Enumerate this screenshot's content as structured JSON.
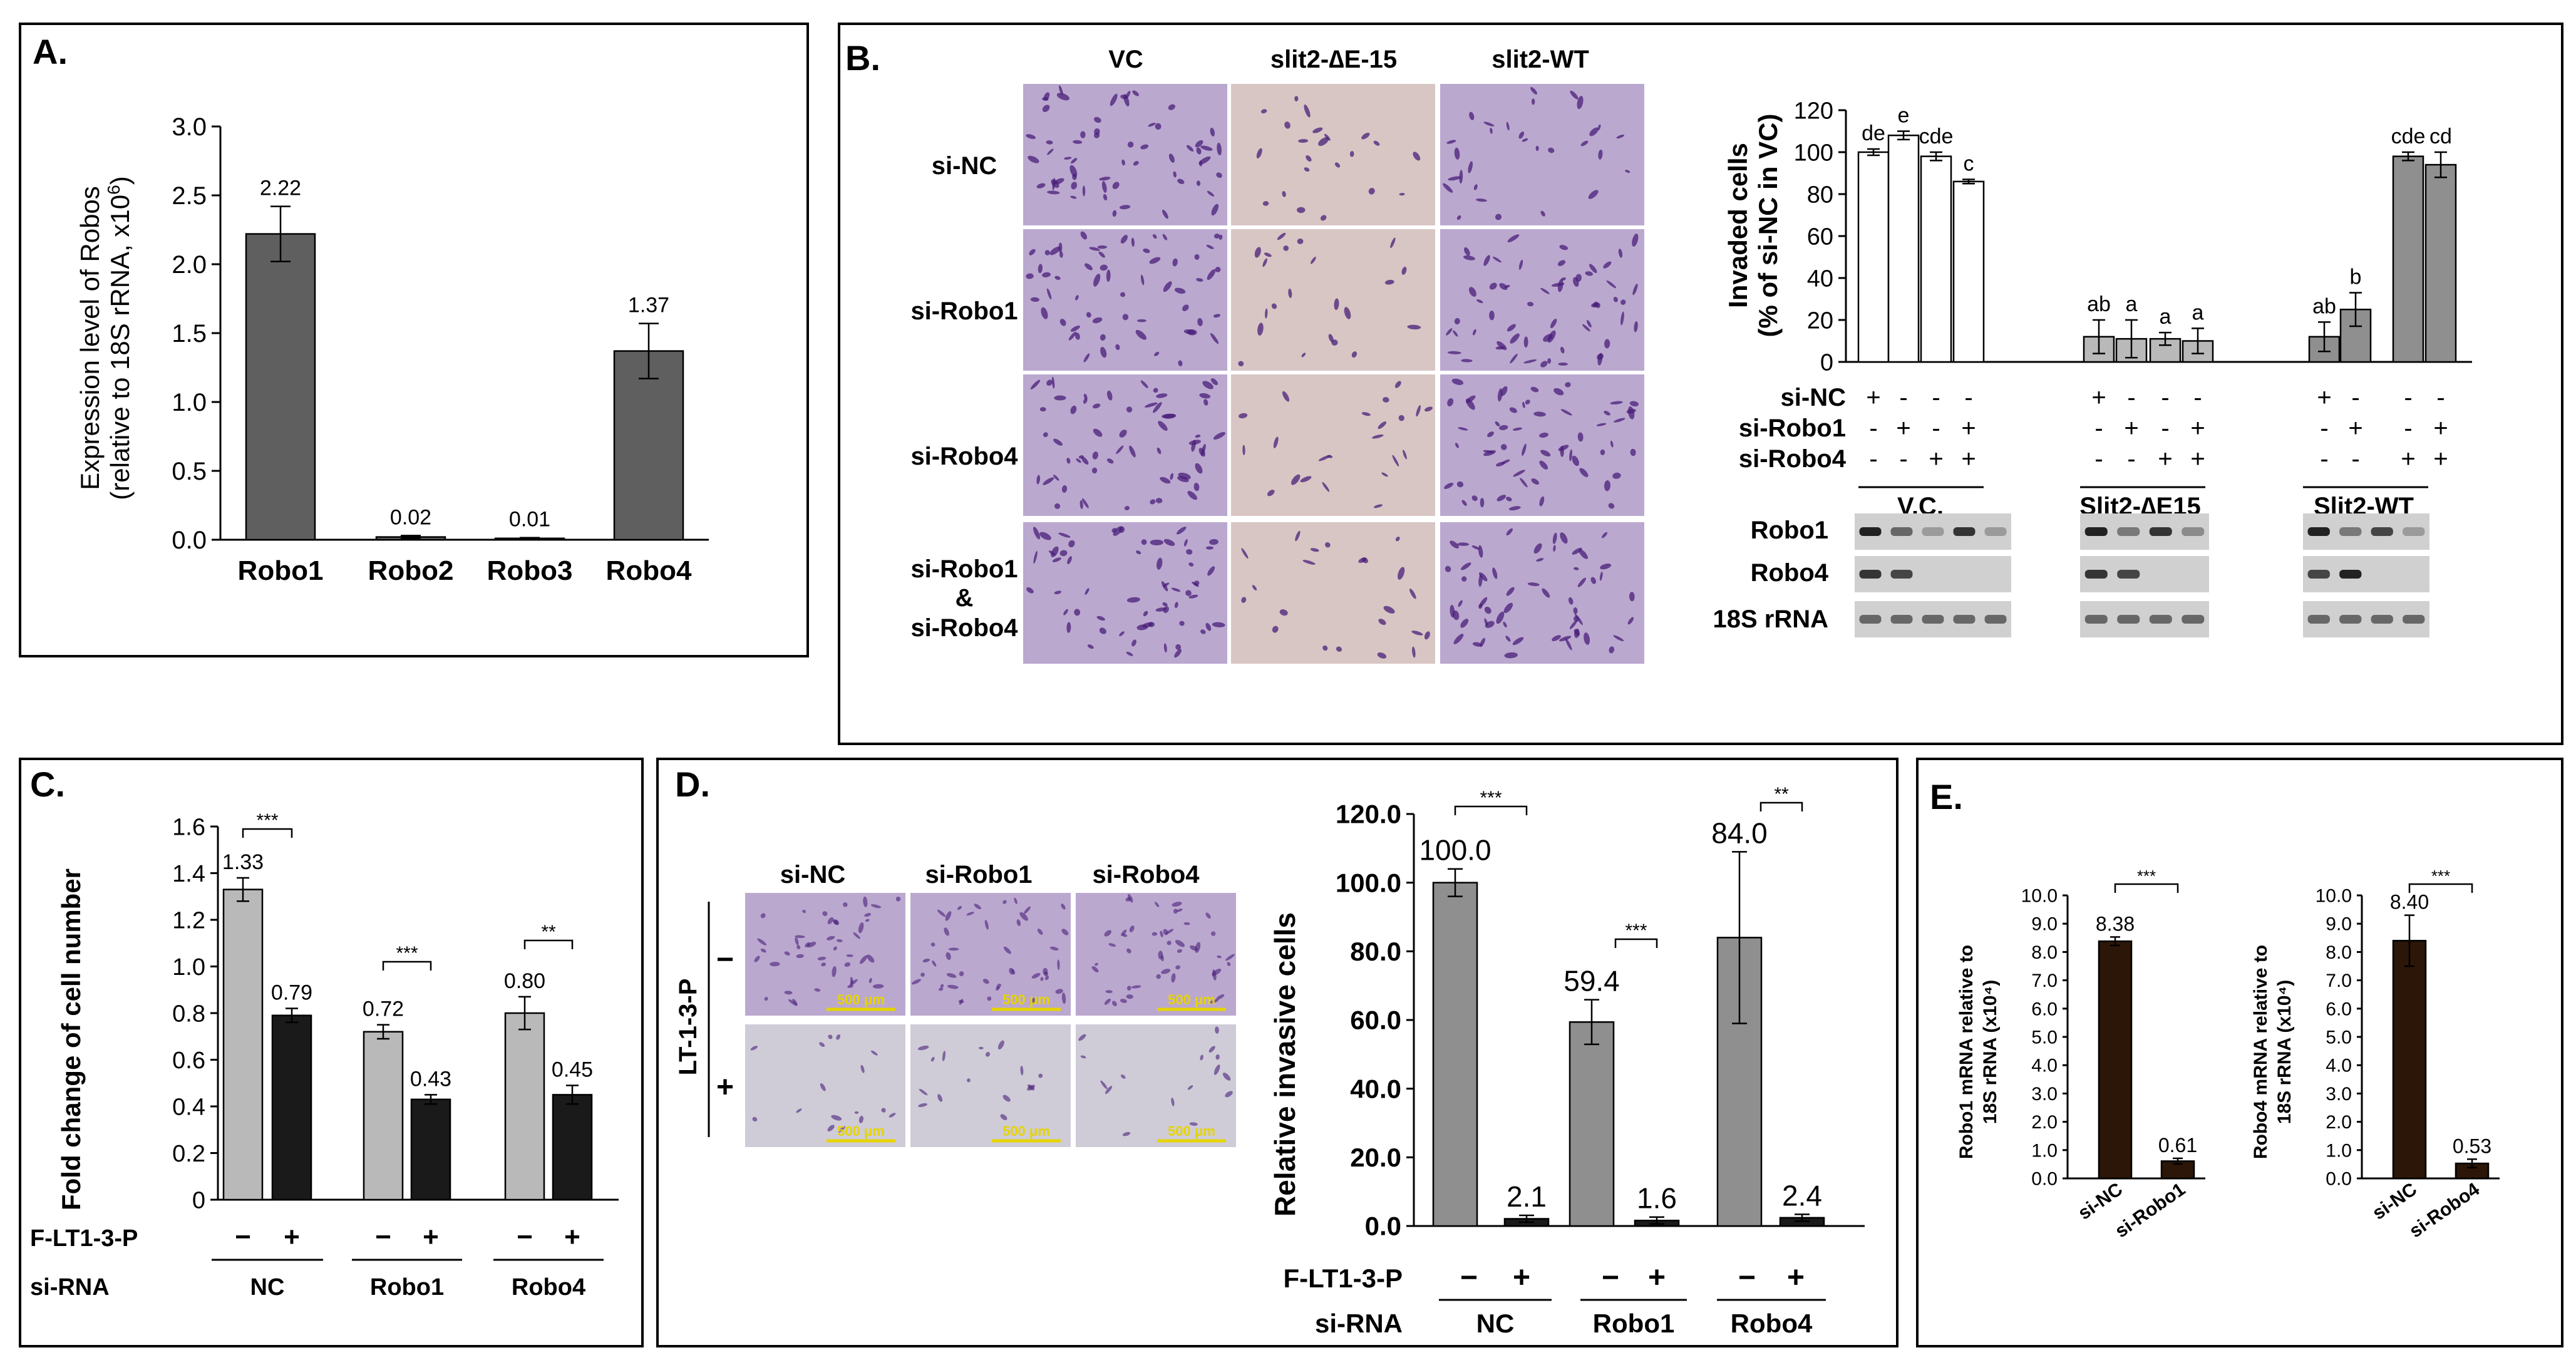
{
  "colors": {
    "dark_gray": "#5f5f5f",
    "light_gray": "#b9b9b9",
    "mid_gray": "#8f8f8f",
    "black_bar": "#1a1a1a",
    "dark_brown": "#2b1608",
    "white": "#ffffff",
    "micro_dense": "#bba8cf",
    "micro_sparse": "#d8c6c4",
    "micro_light": "#cfccd8",
    "micro_dot": "#4a1f7a",
    "scale_yellow": "#e6d400",
    "gel_bg": "#d0d0d0",
    "gel_band": "#222222"
  },
  "panels": {
    "A": {
      "label": "A."
    },
    "B": {
      "label": "B.",
      "col_headers": [
        "VC",
        "slit2-∆E-15",
        "slit2-WT"
      ],
      "row_headers": [
        "si-NC",
        "si-Robo1",
        "si-Robo4",
        "si-Robo1",
        "&",
        "si-Robo4"
      ],
      "treat_labels": [
        "si-NC",
        "si-Robo1",
        "si-Robo4"
      ],
      "treat_signs": [
        [
          "+",
          "-",
          "-",
          "-"
        ],
        [
          "-",
          "+",
          "-",
          "+"
        ],
        [
          "-",
          "-",
          "+",
          "+"
        ]
      ],
      "group_labels": [
        "V.C.",
        "Slit2-∆E15",
        "Slit2-WT"
      ],
      "gel_rows": [
        "Robo1",
        "Robo4",
        "18S rRNA"
      ]
    },
    "C": {
      "label": "C.",
      "treat_row": "F-LT1-3-P",
      "sirna_row": "si-RNA",
      "minus": "−",
      "plus": "+",
      "groups": [
        "NC",
        "Robo1",
        "Robo4"
      ],
      "sig": [
        "***",
        "***",
        "**"
      ]
    },
    "D": {
      "label": "D.",
      "col_headers": [
        "si-NC",
        "si-Robo1",
        "si-Robo4"
      ],
      "side_label": "LT-1-3-P",
      "row_signs": [
        "−",
        "+"
      ],
      "scale_bar": "500 μm",
      "treat_row": "F-LT1-3-P",
      "sirna_row": "si-RNA",
      "minus": "−",
      "plus": "+",
      "groups": [
        "NC",
        "Robo1",
        "Robo4"
      ],
      "sig": [
        "***",
        "***",
        "**"
      ]
    },
    "E": {
      "label": "E.",
      "sig": [
        "***",
        "***"
      ]
    }
  },
  "chart_data": [
    {
      "id": "A",
      "type": "bar",
      "categories": [
        "Robo1",
        "Robo2",
        "Robo3",
        "Robo4"
      ],
      "values": [
        2.22,
        0.02,
        0.01,
        1.37
      ],
      "errors": [
        0.2,
        0.01,
        0.005,
        0.2
      ],
      "labels": [
        "2.22",
        "0.02",
        "0.01",
        "1.37"
      ],
      "ylabel_line1": "Expression level of Robos",
      "ylabel_line2": "(relative to 18S rRNA, x10",
      "ylabel_sup": "6",
      "ylabel_end": ")",
      "ylim": [
        0,
        3.0
      ],
      "yticks": [
        "0.0",
        "0.5",
        "1.0",
        "1.5",
        "2.0",
        "2.5",
        "3.0"
      ]
    },
    {
      "id": "B",
      "type": "bar",
      "categories": [
        "1",
        "2",
        "3",
        "4",
        "5",
        "6",
        "7",
        "8",
        "9",
        "10",
        "11",
        "12"
      ],
      "values": [
        100,
        108,
        98,
        86,
        12,
        11,
        11,
        10,
        12,
        25,
        98,
        94
      ],
      "errors": [
        1.5,
        2,
        2,
        1,
        8,
        9,
        3,
        6,
        7,
        8,
        2,
        6
      ],
      "letters": [
        "de",
        "e",
        "cde",
        "c",
        "ab",
        "a",
        "a",
        "a",
        "ab",
        "b",
        "cde",
        "cd"
      ],
      "ylabel_line1": "Invaded cells",
      "ylabel_line2": "(% of  si-NC in VC)",
      "ylim": [
        0,
        120
      ],
      "yticks": [
        "0",
        "20",
        "40",
        "60",
        "80",
        "100",
        "120"
      ]
    },
    {
      "id": "C",
      "type": "bar",
      "categories": [
        "NC −",
        "NC +",
        "Robo1 −",
        "Robo1 +",
        "Robo4 −",
        "Robo4 +"
      ],
      "values": [
        1.33,
        0.79,
        0.72,
        0.43,
        0.8,
        0.45
      ],
      "errors": [
        0.05,
        0.03,
        0.03,
        0.02,
        0.07,
        0.04
      ],
      "labels": [
        "1.33",
        "0.79",
        "0.72",
        "0.43",
        "0.80",
        "0.45"
      ],
      "ylabel": "Fold change of cell number",
      "ylim": [
        0,
        1.6
      ],
      "yticks": [
        "0",
        "0.2",
        "0.4",
        "0.6",
        "0.8",
        "1.0",
        "1.2",
        "1.4",
        "1.6"
      ]
    },
    {
      "id": "D",
      "type": "bar",
      "categories": [
        "NC −",
        "NC +",
        "Robo1 −",
        "Robo1 +",
        "Robo4 −",
        "Robo4 +"
      ],
      "values": [
        100.0,
        2.1,
        59.4,
        1.6,
        84.0,
        2.4
      ],
      "errors": [
        4,
        1,
        6.5,
        1,
        25,
        1
      ],
      "labels": [
        "100.0",
        "2.1",
        "59.4",
        "1.6",
        "84.0",
        "2.4"
      ],
      "ylabel": "Relative invasive cells",
      "ylim": [
        0,
        120
      ],
      "yticks": [
        "0.0",
        "20.0",
        "40.0",
        "60.0",
        "80.0",
        "100.0",
        "120.0"
      ]
    },
    {
      "id": "E1",
      "type": "bar",
      "categories": [
        "si-NC",
        "si-Robo1"
      ],
      "values": [
        8.38,
        0.61
      ],
      "errors": [
        0.15,
        0.1
      ],
      "labels": [
        "8.38",
        "0.61"
      ],
      "ylabel_line1": "Robo1 mRNA relative to",
      "ylabel_line2": "18S rRNA (x10⁴)",
      "ylim": [
        0,
        10
      ],
      "yticks": [
        "0.0",
        "1.0",
        "2.0",
        "3.0",
        "4.0",
        "5.0",
        "6.0",
        "7.0",
        "8.0",
        "9.0",
        "10.0"
      ]
    },
    {
      "id": "E2",
      "type": "bar",
      "categories": [
        "si-NC",
        "si-Robo4"
      ],
      "values": [
        8.4,
        0.53
      ],
      "errors": [
        0.9,
        0.15
      ],
      "labels": [
        "8.40",
        "0.53"
      ],
      "ylabel_line1": "Robo4 mRNA relative to",
      "ylabel_line2": "18S rRNA (x10⁴)",
      "ylim": [
        0,
        10
      ],
      "yticks": [
        "0.0",
        "1.0",
        "2.0",
        "3.0",
        "4.0",
        "5.0",
        "6.0",
        "7.0",
        "8.0",
        "9.0",
        "10.0"
      ]
    }
  ]
}
